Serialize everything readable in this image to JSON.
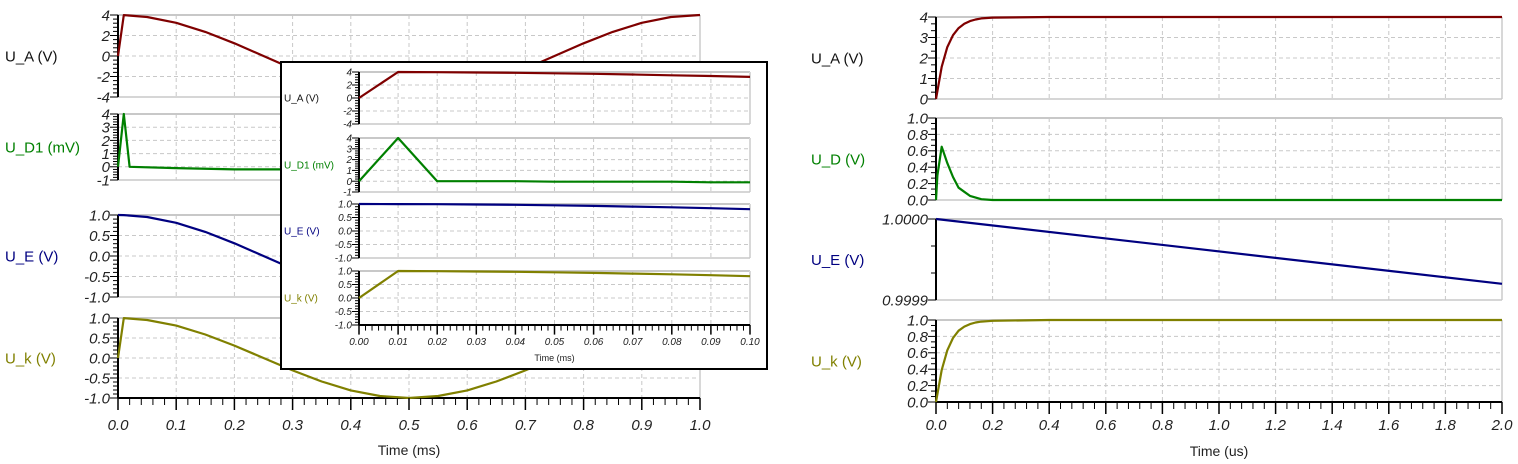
{
  "colors": {
    "U_A": "#7f0000",
    "U_D": "#008000",
    "U_E": "#000080",
    "U_k": "#808000",
    "grid": "#c8c8c8"
  },
  "chart_data": [
    {
      "type": "line",
      "xlabel": "Time (ms)",
      "xlim": [
        0,
        1.0
      ],
      "x_ticks": [
        "0.0",
        "0.1",
        "0.2",
        "0.3",
        "0.4",
        "0.5",
        "0.6",
        "0.7",
        "0.8",
        "0.9",
        "1.0"
      ],
      "grid": true,
      "panels": [
        {
          "ylabel": "U_A (V)",
          "color_key": "U_A",
          "ylim": [
            -4,
            4
          ],
          "y_ticks": [
            "4",
            "2",
            "0",
            "-2",
            "-4"
          ],
          "x": [
            0,
            0.01,
            0.05,
            0.1,
            0.15,
            0.2,
            0.25,
            0.3,
            0.35,
            0.4,
            0.45,
            0.5,
            0.55,
            0.6,
            0.65,
            0.7,
            0.75,
            0.8,
            0.85,
            0.9,
            0.95,
            1.0
          ],
          "y": [
            0,
            3.99,
            3.8,
            3.24,
            2.35,
            1.24,
            0,
            -1.24,
            -2.35,
            -3.24,
            -3.8,
            -4,
            -3.8,
            -3.24,
            -2.35,
            -1.24,
            0,
            1.24,
            2.35,
            3.24,
            3.8,
            4
          ]
        },
        {
          "ylabel": "U_D1 (mV)",
          "color_key": "U_D",
          "ylim": [
            -1,
            4
          ],
          "y_ticks": [
            "4",
            "3",
            "2",
            "1",
            "0",
            "-1"
          ],
          "x": [
            0,
            0.01,
            0.02,
            0.1,
            0.2,
            0.3
          ],
          "y": [
            0,
            4,
            0,
            -0.1,
            -0.2,
            -0.2
          ]
        },
        {
          "ylabel": "U_E (V)",
          "color_key": "U_E",
          "ylim": [
            -1,
            1
          ],
          "y_ticks": [
            "1.0",
            "0.5",
            "0.0",
            "-0.5",
            "-1.0"
          ],
          "x": [
            0,
            0.01,
            0.05,
            0.1,
            0.15,
            0.2,
            0.25,
            0.3
          ],
          "y": [
            1,
            0.998,
            0.951,
            0.809,
            0.588,
            0.309,
            0,
            -0.309
          ]
        },
        {
          "ylabel": "U_k (V)",
          "color_key": "U_k",
          "ylim": [
            -1,
            1
          ],
          "y_ticks": [
            "1.0",
            "0.5",
            "0.0",
            "-0.5",
            "-1.0"
          ],
          "x": [
            0,
            0.01,
            0.05,
            0.1,
            0.15,
            0.2,
            0.25,
            0.3,
            0.35,
            0.4,
            0.45,
            0.5,
            0.55,
            0.6,
            0.65,
            0.7,
            0.75,
            0.8,
            0.85,
            0.9,
            0.95,
            1.0
          ],
          "y": [
            0,
            0.998,
            0.951,
            0.809,
            0.588,
            0.309,
            0,
            -0.309,
            -0.588,
            -0.809,
            -0.951,
            -1,
            -0.951,
            -0.809,
            -0.588,
            -0.309,
            0,
            0.309,
            0.588,
            0.809,
            0.951,
            1
          ]
        }
      ]
    },
    {
      "type": "line",
      "xlabel": "Time (ms)",
      "xlim": [
        0,
        0.1
      ],
      "x_ticks": [
        "0.00",
        "0.01",
        "0.02",
        "0.03",
        "0.04",
        "0.05",
        "0.06",
        "0.07",
        "0.08",
        "0.09",
        "0.10"
      ],
      "grid": true,
      "placement": "inset",
      "panels": [
        {
          "ylabel": "U_A (V)",
          "color_key": "U_A",
          "ylim": [
            -4,
            4
          ],
          "y_ticks": [
            "4",
            "2",
            "0",
            "-2",
            "-4"
          ],
          "x": [
            0,
            0.01,
            0.02,
            0.03,
            0.04,
            0.05,
            0.06,
            0.07,
            0.08,
            0.09,
            0.1
          ],
          "y": [
            0,
            4,
            3.97,
            3.93,
            3.88,
            3.8,
            3.72,
            3.62,
            3.5,
            3.38,
            3.24
          ]
        },
        {
          "ylabel": "U_D1 (mV)",
          "color_key": "U_D",
          "ylim": [
            -1,
            4
          ],
          "y_ticks": [
            "4",
            "3",
            "2",
            "1",
            "0",
            "-1"
          ],
          "x": [
            0,
            0.01,
            0.02,
            0.03,
            0.04,
            0.05,
            0.06,
            0.07,
            0.08,
            0.09,
            0.1
          ],
          "y": [
            0,
            4,
            0,
            0,
            0,
            -0.05,
            -0.05,
            -0.05,
            -0.05,
            -0.1,
            -0.1
          ]
        },
        {
          "ylabel": "U_E (V)",
          "color_key": "U_E",
          "ylim": [
            -1,
            1
          ],
          "y_ticks": [
            "1.0",
            "0.5",
            "0.0",
            "-0.5",
            "-1.0"
          ],
          "x": [
            0,
            0.01,
            0.02,
            0.03,
            0.04,
            0.05,
            0.06,
            0.07,
            0.08,
            0.09,
            0.1
          ],
          "y": [
            1,
            0.998,
            0.992,
            0.982,
            0.969,
            0.951,
            0.93,
            0.905,
            0.876,
            0.844,
            0.809
          ]
        },
        {
          "ylabel": "U_k (V)",
          "color_key": "U_k",
          "ylim": [
            -1,
            1
          ],
          "y_ticks": [
            "1.0",
            "0.5",
            "0.0",
            "-0.5",
            "-1.0"
          ],
          "x": [
            0,
            0.01,
            0.02,
            0.03,
            0.04,
            0.05,
            0.06,
            0.07,
            0.08,
            0.09,
            0.1
          ],
          "y": [
            0,
            1,
            0.992,
            0.982,
            0.969,
            0.951,
            0.93,
            0.905,
            0.876,
            0.844,
            0.809
          ]
        }
      ]
    },
    {
      "type": "line",
      "xlabel": "Time (us)",
      "xlim": [
        0,
        2.0
      ],
      "x_ticks": [
        "0.0",
        "0.2",
        "0.4",
        "0.6",
        "0.8",
        "1.0",
        "1.2",
        "1.4",
        "1.6",
        "1.8",
        "2.0"
      ],
      "grid": true,
      "panels": [
        {
          "ylabel": "U_A (V)",
          "color_key": "U_A",
          "ylim": [
            0,
            4
          ],
          "y_ticks": [
            "4",
            "3",
            "2",
            "1",
            "0"
          ],
          "x": [
            0,
            0.02,
            0.04,
            0.06,
            0.08,
            0.1,
            0.12,
            0.14,
            0.16,
            0.2,
            0.4,
            1.0,
            2.0
          ],
          "y": [
            0,
            1.57,
            2.53,
            3.11,
            3.46,
            3.67,
            3.8,
            3.88,
            3.93,
            3.97,
            4,
            4,
            4
          ]
        },
        {
          "ylabel": "U_D (V)",
          "color_key": "U_D",
          "ylim": [
            0,
            1
          ],
          "y_ticks": [
            "1.0",
            "0.8",
            "0.6",
            "0.4",
            "0.2",
            "0.0"
          ],
          "x": [
            0,
            0.005,
            0.02,
            0.04,
            0.06,
            0.08,
            0.1,
            0.12,
            0.16,
            0.2,
            2.0
          ],
          "y": [
            0,
            0.3,
            0.65,
            0.45,
            0.28,
            0.15,
            0.1,
            0.05,
            0.01,
            0,
            0
          ]
        },
        {
          "ylabel": "U_E (V)",
          "color_key": "U_E",
          "ylim": [
            0.9999,
            1.0
          ],
          "y_ticks": [
            "1.0000",
            "0.9999"
          ],
          "x": [
            0,
            2.0
          ],
          "y": [
            1.0,
            0.99992
          ]
        },
        {
          "ylabel": "U_k (V)",
          "color_key": "U_k",
          "ylim": [
            0,
            1
          ],
          "y_ticks": [
            "1.0",
            "0.8",
            "0.6",
            "0.4",
            "0.2",
            "0.0"
          ],
          "x": [
            0,
            0.02,
            0.04,
            0.06,
            0.08,
            0.1,
            0.12,
            0.14,
            0.16,
            0.2,
            0.4,
            1.0,
            2.0
          ],
          "y": [
            0,
            0.39,
            0.63,
            0.78,
            0.87,
            0.92,
            0.95,
            0.97,
            0.98,
            0.99,
            1,
            1,
            1
          ]
        }
      ]
    }
  ]
}
